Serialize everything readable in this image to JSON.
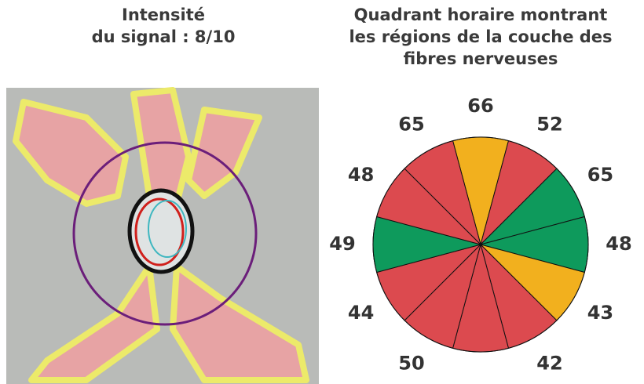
{
  "left": {
    "title_lines": [
      "Intensité",
      "du signal : 8/10"
    ]
  },
  "right": {
    "title_lines": [
      "Quadrant horaire montrant",
      "les régions de la couche des",
      "fibres nerveuses"
    ]
  },
  "clock": {
    "sectors": [
      {
        "value": 66,
        "color": "#f2b01e"
      },
      {
        "value": 52,
        "color": "#dc4a4f"
      },
      {
        "value": 65,
        "color": "#0e9a5c"
      },
      {
        "value": 48,
        "color": "#0e9a5c"
      },
      {
        "value": 43,
        "color": "#f2b01e"
      },
      {
        "value": 42,
        "color": "#dc4a4f"
      },
      {
        "value": null,
        "color": "#dc4a4f"
      },
      {
        "value": 50,
        "color": "#dc4a4f"
      },
      {
        "value": 44,
        "color": "#dc4a4f"
      },
      {
        "value": 49,
        "color": "#0e9a5c"
      },
      {
        "value": 48,
        "color": "#dc4a4f"
      },
      {
        "value": 65,
        "color": "#dc4a4f"
      }
    ]
  }
}
